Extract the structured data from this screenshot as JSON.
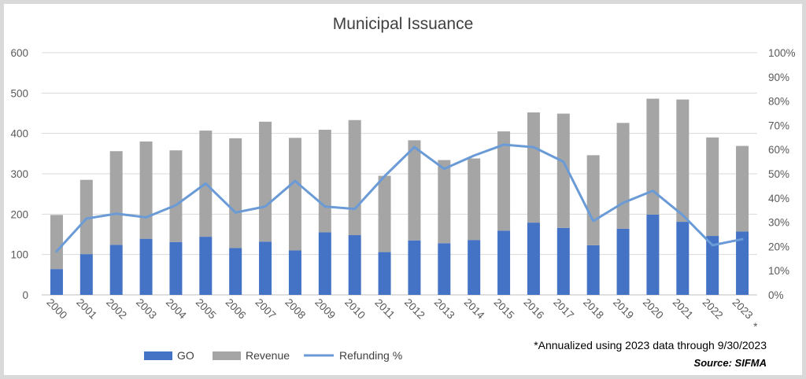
{
  "chart_data": {
    "type": "bar",
    "title": "Municipal Issuance",
    "categories": [
      "2000",
      "2001",
      "2002",
      "2003",
      "2004",
      "2005",
      "2006",
      "2007",
      "2008",
      "2009",
      "2010",
      "2011",
      "2012",
      "2013",
      "2014",
      "2015",
      "2016",
      "2017",
      "2018",
      "2019",
      "2020",
      "2021",
      "2022",
      "2023"
    ],
    "last_category_marker": "*",
    "stacked": true,
    "series": [
      {
        "name": "GO",
        "type": "bar",
        "axis": "left",
        "color": "#4472c4",
        "values": [
          64,
          101,
          124,
          139,
          131,
          144,
          116,
          132,
          110,
          155,
          148,
          106,
          135,
          128,
          136,
          159,
          179,
          166,
          123,
          164,
          199,
          181,
          146,
          157
        ]
      },
      {
        "name": "Revenue",
        "type": "bar",
        "axis": "left",
        "color": "#a5a5a5",
        "values": [
          134,
          184,
          232,
          241,
          227,
          263,
          272,
          297,
          279,
          254,
          285,
          189,
          248,
          206,
          202,
          246,
          273,
          283,
          223,
          262,
          287,
          303,
          244,
          212
        ]
      },
      {
        "name": "Refunding %",
        "type": "line",
        "axis": "right",
        "color": "#6a9bd6",
        "values": [
          18,
          31.5,
          33.5,
          32,
          37,
          46,
          34,
          36.5,
          47,
          36.5,
          35.5,
          49,
          61,
          52,
          57.5,
          62,
          61,
          55,
          30.5,
          38,
          43,
          33,
          20.5,
          23
        ]
      }
    ],
    "y_left": {
      "min": 0,
      "max": 600,
      "step": 100,
      "ticks": [
        "0",
        "100",
        "200",
        "300",
        "400",
        "500",
        "600"
      ]
    },
    "y_right": {
      "min": 0,
      "max": 100,
      "step": 10,
      "ticks": [
        "0%",
        "10%",
        "20%",
        "30%",
        "40%",
        "50%",
        "60%",
        "70%",
        "80%",
        "90%",
        "100%"
      ]
    },
    "grid": true,
    "legend": {
      "placement": "bottom-left",
      "items": [
        "GO",
        "Revenue",
        "Refunding %"
      ]
    },
    "annotations": {
      "note": "*Annualized using 2023 data through 9/30/2023",
      "source": "Source: SIFMA"
    }
  }
}
